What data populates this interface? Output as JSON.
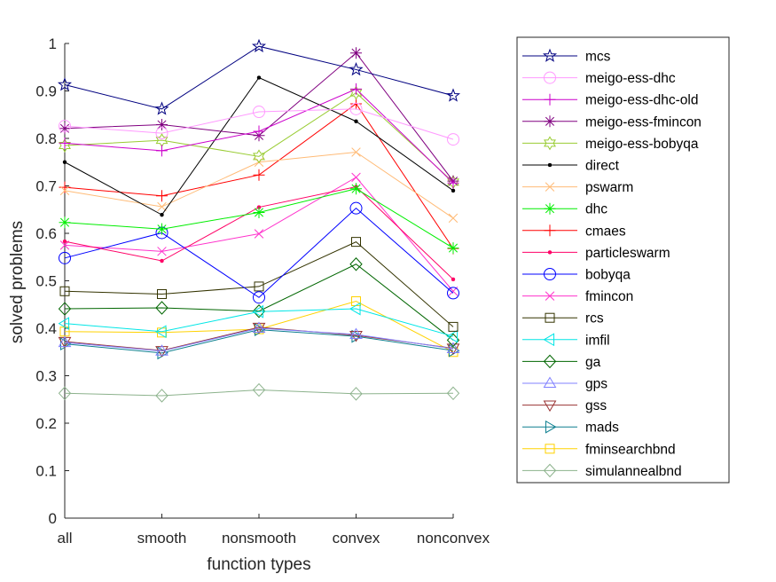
{
  "chart_data": {
    "type": "line",
    "xlabel": "function types",
    "ylabel": "solved problems",
    "categories": [
      "all",
      "smooth",
      "nonsmooth",
      "convex",
      "nonconvex"
    ],
    "ylim": [
      0,
      1
    ],
    "yticks": [
      0,
      0.1,
      0.2,
      0.3,
      0.4,
      0.5,
      0.6,
      0.7,
      0.8,
      0.9,
      1
    ],
    "ytick_labels": [
      "0",
      "0.1",
      "0.2",
      "0.3",
      "0.4",
      "0.5",
      "0.6",
      "0.7",
      "0.8",
      "0.9",
      "1"
    ],
    "grid": false,
    "legend_position": "outside-right",
    "series": [
      {
        "name": "mcs",
        "color": "#000080",
        "marker": "star",
        "values": [
          0.913,
          0.862,
          0.994,
          0.945,
          0.89
        ]
      },
      {
        "name": "meigo-ess-dhc",
        "color": "#ff99ff",
        "marker": "circle",
        "values": [
          0.826,
          0.811,
          0.856,
          0.862,
          0.798
        ]
      },
      {
        "name": "meigo-ess-dhc-old",
        "color": "#cc00cc",
        "marker": "plus",
        "values": [
          0.79,
          0.774,
          0.815,
          0.904,
          0.706
        ]
      },
      {
        "name": "meigo-ess-fmincon",
        "color": "#800080",
        "marker": "asterisk",
        "values": [
          0.821,
          0.829,
          0.806,
          0.98,
          0.71
        ]
      },
      {
        "name": "meigo-ess-bobyqa",
        "color": "#99cc33",
        "marker": "hexagram",
        "values": [
          0.785,
          0.796,
          0.762,
          0.896,
          0.708
        ]
      },
      {
        "name": "direct",
        "color": "#000000",
        "marker": "dot",
        "values": [
          0.75,
          0.639,
          0.928,
          0.836,
          0.69
        ]
      },
      {
        "name": "pswarm",
        "color": "#ffbb77",
        "marker": "x",
        "values": [
          0.69,
          0.656,
          0.75,
          0.771,
          0.632
        ]
      },
      {
        "name": "dhc",
        "color": "#00ee00",
        "marker": "asterisk",
        "values": [
          0.623,
          0.609,
          0.644,
          0.694,
          0.569
        ]
      },
      {
        "name": "cmaes",
        "color": "#ff0000",
        "marker": "plus",
        "values": [
          0.697,
          0.679,
          0.723,
          0.873,
          0.568
        ]
      },
      {
        "name": "particleswarm",
        "color": "#ff0066",
        "marker": "dot",
        "values": [
          0.583,
          0.542,
          0.655,
          0.698,
          0.503
        ]
      },
      {
        "name": "bobyqa",
        "color": "#0000ff",
        "marker": "circle",
        "values": [
          0.548,
          0.601,
          0.465,
          0.653,
          0.474
        ]
      },
      {
        "name": "fmincon",
        "color": "#ff33cc",
        "marker": "x",
        "values": [
          0.575,
          0.562,
          0.599,
          0.718,
          0.478
        ]
      },
      {
        "name": "rcs",
        "color": "#333300",
        "marker": "square",
        "values": [
          0.478,
          0.472,
          0.488,
          0.582,
          0.403
        ]
      },
      {
        "name": "imfil",
        "color": "#00e6e6",
        "marker": "triangle-left",
        "values": [
          0.41,
          0.393,
          0.435,
          0.441,
          0.383
        ]
      },
      {
        "name": "ga",
        "color": "#006600",
        "marker": "diamond",
        "values": [
          0.441,
          0.443,
          0.436,
          0.535,
          0.375
        ]
      },
      {
        "name": "gps",
        "color": "#8080ff",
        "marker": "triangle-up",
        "values": [
          0.37,
          0.352,
          0.4,
          0.387,
          0.357
        ]
      },
      {
        "name": "gss",
        "color": "#993333",
        "marker": "triangle-down",
        "values": [
          0.372,
          0.353,
          0.402,
          0.385,
          0.358
        ]
      },
      {
        "name": "mads",
        "color": "#0d7f8f",
        "marker": "triangle-right",
        "values": [
          0.367,
          0.348,
          0.397,
          0.383,
          0.353
        ]
      },
      {
        "name": "fminsearchbnd",
        "color": "#ffd200",
        "marker": "square",
        "values": [
          0.393,
          0.391,
          0.398,
          0.457,
          0.35
        ]
      },
      {
        "name": "simulannealbnd",
        "color": "#8cb28c",
        "marker": "diamond",
        "values": [
          0.263,
          0.258,
          0.27,
          0.262,
          0.263
        ]
      }
    ]
  }
}
